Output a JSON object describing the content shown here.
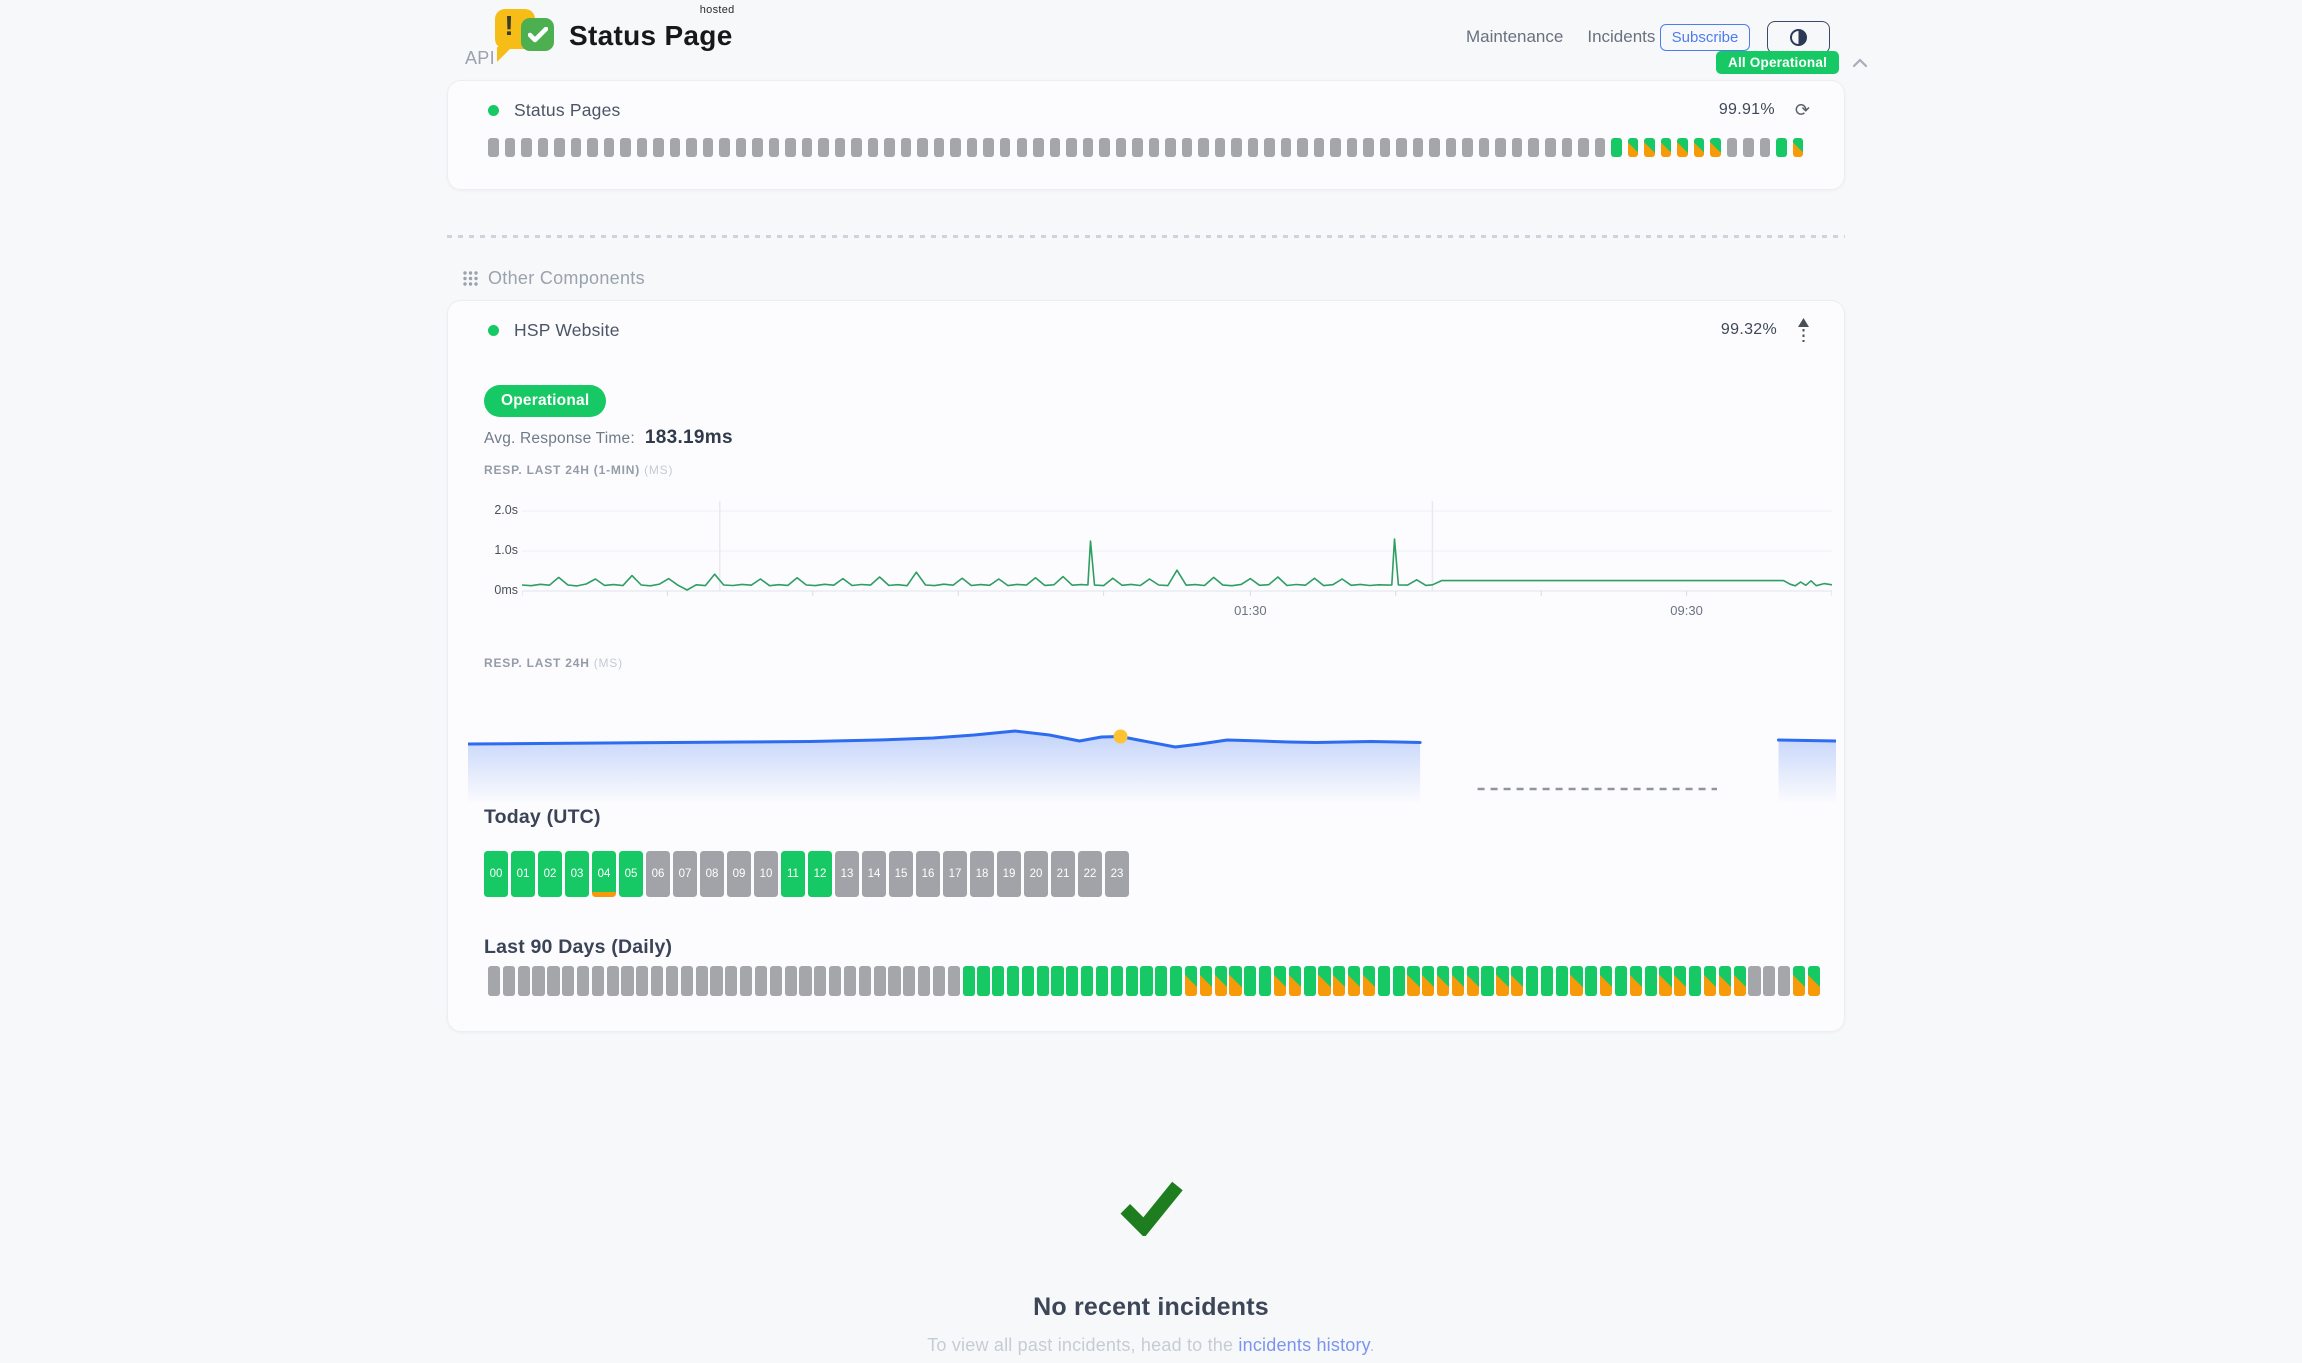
{
  "header": {
    "brand": {
      "name": "Status Page",
      "superscript": "hosted",
      "alert_glyph": "!"
    },
    "nav": [
      {
        "label": "Maintenance"
      },
      {
        "label": "Incidents"
      }
    ],
    "subscribe_label": "Subscribe",
    "status_badge": "All Operational"
  },
  "sections": {
    "api": {
      "title": "API",
      "component": {
        "name": "Status Pages",
        "uptime_pct": "99.91%",
        "bars": [
          "n",
          "n",
          "n",
          "n",
          "n",
          "n",
          "n",
          "n",
          "n",
          "n",
          "n",
          "n",
          "n",
          "n",
          "n",
          "n",
          "n",
          "n",
          "n",
          "n",
          "n",
          "n",
          "n",
          "n",
          "n",
          "n",
          "n",
          "n",
          "n",
          "n",
          "n",
          "n",
          "n",
          "n",
          "n",
          "n",
          "n",
          "n",
          "n",
          "n",
          "n",
          "n",
          "n",
          "n",
          "n",
          "n",
          "n",
          "n",
          "n",
          "n",
          "n",
          "n",
          "n",
          "n",
          "n",
          "n",
          "n",
          "n",
          "n",
          "n",
          "n",
          "n",
          "n",
          "n",
          "n",
          "n",
          "n",
          "n",
          "u",
          "d",
          "d",
          "d",
          "d",
          "d",
          "d",
          "n",
          "n",
          "n",
          "u",
          "d"
        ]
      }
    },
    "other": {
      "title": "Other Components",
      "component": {
        "name": "HSP Website",
        "uptime_pct": "99.32%",
        "status": "Operational",
        "avg_response_label": "Avg. Response Time:",
        "avg_response_value": "183.19ms",
        "today_title": "Today (UTC)",
        "today_hours": [
          {
            "label": "00",
            "status": "u"
          },
          {
            "label": "01",
            "status": "u"
          },
          {
            "label": "02",
            "status": "u"
          },
          {
            "label": "03",
            "status": "u"
          },
          {
            "label": "04",
            "status": "um"
          },
          {
            "label": "05",
            "status": "u"
          },
          {
            "label": "06",
            "status": "n"
          },
          {
            "label": "07",
            "status": "n"
          },
          {
            "label": "08",
            "status": "n"
          },
          {
            "label": "09",
            "status": "n"
          },
          {
            "label": "10",
            "status": "n"
          },
          {
            "label": "11",
            "status": "u"
          },
          {
            "label": "12",
            "status": "u"
          },
          {
            "label": "13",
            "status": "n"
          },
          {
            "label": "14",
            "status": "n"
          },
          {
            "label": "15",
            "status": "n"
          },
          {
            "label": "16",
            "status": "n"
          },
          {
            "label": "17",
            "status": "n"
          },
          {
            "label": "18",
            "status": "n"
          },
          {
            "label": "19",
            "status": "n"
          },
          {
            "label": "20",
            "status": "n"
          },
          {
            "label": "21",
            "status": "n"
          },
          {
            "label": "22",
            "status": "n"
          },
          {
            "label": "23",
            "status": "n"
          }
        ],
        "last90_title": "Last 90 Days (Daily)",
        "last90_bars": [
          "n",
          "n",
          "n",
          "n",
          "n",
          "n",
          "n",
          "n",
          "n",
          "n",
          "n",
          "n",
          "n",
          "n",
          "n",
          "n",
          "n",
          "n",
          "n",
          "n",
          "n",
          "n",
          "n",
          "n",
          "n",
          "n",
          "n",
          "n",
          "n",
          "n",
          "n",
          "n",
          "u",
          "u",
          "u",
          "u",
          "u",
          "u",
          "u",
          "u",
          "u",
          "u",
          "u",
          "u",
          "u",
          "u",
          "u",
          "d",
          "d",
          "d",
          "d",
          "u",
          "u",
          "d",
          "d",
          "u",
          "d",
          "d",
          "d",
          "d",
          "u",
          "u",
          "d",
          "d",
          "d",
          "d",
          "d",
          "u",
          "d",
          "d",
          "u",
          "u",
          "u",
          "d",
          "u",
          "d",
          "u",
          "d",
          "u",
          "d",
          "d",
          "u",
          "d",
          "d",
          "d",
          "n",
          "n",
          "n",
          "d",
          "d"
        ]
      }
    }
  },
  "chart_data": [
    {
      "type": "line",
      "label": "RESP. LAST 24H (1-MIN)",
      "unit": "(MS)",
      "line_color": "#2e9e62",
      "ylim_ms": [
        0,
        2250
      ],
      "grid": true,
      "y_ticks": [
        {
          "label": "2.0s",
          "ms": 2000
        },
        {
          "label": "1.0s",
          "ms": 1000
        },
        {
          "label": "0ms",
          "ms": 0
        }
      ],
      "x_labels": [
        {
          "label": "01:30",
          "pct": 55.6
        },
        {
          "label": "09:30",
          "pct": 88.9
        }
      ],
      "x_ticks_pct": [
        0,
        11.1,
        22.2,
        33.3,
        44.4,
        55.6,
        66.7,
        77.8,
        88.9,
        100
      ],
      "boundary_lines_pct": [
        15.1,
        69.5
      ],
      "points_pct_ms": [
        [
          0,
          150
        ],
        [
          0.7,
          132
        ],
        [
          1.4,
          168
        ],
        [
          2.1,
          145
        ],
        [
          2.8,
          340
        ],
        [
          3.5,
          150
        ],
        [
          4.2,
          128
        ],
        [
          4.9,
          175
        ],
        [
          5.6,
          300
        ],
        [
          6.3,
          140
        ],
        [
          7,
          160
        ],
        [
          7.7,
          135
        ],
        [
          8.4,
          385
        ],
        [
          9.1,
          150
        ],
        [
          9.8,
          130
        ],
        [
          10.5,
          172
        ],
        [
          11.2,
          310
        ],
        [
          11.9,
          145
        ],
        [
          12.6,
          25
        ],
        [
          13.3,
          155
        ],
        [
          14,
          135
        ],
        [
          14.7,
          420
        ],
        [
          15.4,
          150
        ],
        [
          16.1,
          138
        ],
        [
          16.8,
          165
        ],
        [
          17.5,
          145
        ],
        [
          18.2,
          300
        ],
        [
          18.9,
          132
        ],
        [
          19.6,
          158
        ],
        [
          20.3,
          140
        ],
        [
          21,
          330
        ],
        [
          21.7,
          150
        ],
        [
          22.4,
          135
        ],
        [
          23.1,
          168
        ],
        [
          23.8,
          145
        ],
        [
          24.5,
          310
        ],
        [
          25.2,
          138
        ],
        [
          25.9,
          162
        ],
        [
          26.6,
          148
        ],
        [
          27.3,
          350
        ],
        [
          28,
          140
        ],
        [
          28.7,
          158
        ],
        [
          29.4,
          132
        ],
        [
          30.1,
          470
        ],
        [
          30.8,
          150
        ],
        [
          31.5,
          135
        ],
        [
          32.2,
          170
        ],
        [
          32.9,
          145
        ],
        [
          33.6,
          320
        ],
        [
          34.3,
          138
        ],
        [
          35,
          160
        ],
        [
          35.7,
          142
        ],
        [
          36.4,
          300
        ],
        [
          37.1,
          135
        ],
        [
          37.8,
          165
        ],
        [
          38.5,
          148
        ],
        [
          39.2,
          330
        ],
        [
          39.9,
          140
        ],
        [
          40.6,
          155
        ],
        [
          41.3,
          360
        ],
        [
          42,
          145
        ],
        [
          42.7,
          160
        ],
        [
          43.2,
          150
        ],
        [
          43.4,
          1250
        ],
        [
          43.7,
          148
        ],
        [
          44.4,
          135
        ],
        [
          45.1,
          320
        ],
        [
          45.8,
          142
        ],
        [
          46.5,
          165
        ],
        [
          47.2,
          138
        ],
        [
          47.9,
          300
        ],
        [
          48.6,
          150
        ],
        [
          49.3,
          135
        ],
        [
          50,
          520
        ],
        [
          50.7,
          145
        ],
        [
          51.4,
          160
        ],
        [
          52.1,
          138
        ],
        [
          52.8,
          340
        ],
        [
          53.5,
          148
        ],
        [
          54.2,
          132
        ],
        [
          54.9,
          165
        ],
        [
          55.6,
          310
        ],
        [
          56.3,
          142
        ],
        [
          57,
          158
        ],
        [
          57.7,
          350
        ],
        [
          58.4,
          138
        ],
        [
          59.1,
          162
        ],
        [
          59.8,
          145
        ],
        [
          60.5,
          320
        ],
        [
          61.2,
          135
        ],
        [
          61.9,
          158
        ],
        [
          62.6,
          300
        ],
        [
          63.3,
          142
        ],
        [
          64,
          165
        ],
        [
          64.7,
          138
        ],
        [
          65.4,
          155
        ],
        [
          66.1,
          148
        ],
        [
          66.4,
          150
        ],
        [
          66.6,
          1300
        ],
        [
          66.9,
          152
        ],
        [
          67.6,
          148
        ],
        [
          68.3,
          280
        ],
        [
          69,
          140
        ],
        [
          69.5,
          155
        ],
        [
          70.2,
          260
        ],
        [
          96.3,
          260
        ],
        [
          96.8,
          170
        ],
        [
          97.2,
          130
        ],
        [
          97.6,
          225
        ],
        [
          98,
          142
        ],
        [
          98.4,
          255
        ],
        [
          98.8,
          132
        ],
        [
          99.4,
          185
        ],
        [
          100,
          155
        ]
      ]
    },
    {
      "type": "area",
      "label": "RESP. LAST 24H",
      "unit": "(MS)",
      "line_color": "#2d6bf0",
      "fill_color": "#3b72f0",
      "marker": {
        "pct": 47.7,
        "v": 68.5,
        "color": "#ffc233"
      },
      "points_pct_v": [
        [
          0,
          61
        ],
        [
          5,
          61.5
        ],
        [
          10,
          62
        ],
        [
          15,
          62.5
        ],
        [
          20,
          63
        ],
        [
          25,
          63.5
        ],
        [
          30,
          65
        ],
        [
          34,
          67
        ],
        [
          37,
          70
        ],
        [
          40,
          74
        ],
        [
          42.5,
          70
        ],
        [
          44.7,
          64
        ],
        [
          46.3,
          68
        ],
        [
          47.7,
          68.5
        ],
        [
          49,
          65
        ],
        [
          51.7,
          58
        ],
        [
          53.5,
          61
        ],
        [
          55.5,
          65
        ],
        [
          58,
          64
        ],
        [
          60,
          63
        ],
        [
          62,
          62.5
        ],
        [
          64,
          63
        ],
        [
          66,
          63.5
        ],
        [
          68,
          63
        ],
        [
          69.6,
          62.5
        ]
      ],
      "no_data_dash": {
        "from_pct": 73.8,
        "to_pct": 91.3,
        "v": 16
      },
      "right_segment_pct_v": [
        [
          95.8,
          65
        ],
        [
          100,
          64
        ]
      ]
    }
  ],
  "incidents": {
    "title": "No recent incidents",
    "subtitle_prefix": "To view all past incidents, head to the ",
    "link_text": "incidents history",
    "subtitle_suffix": "."
  },
  "colors": {
    "operational_green": "#17c964",
    "degraded_orange": "#f79a09",
    "nodata_gray": "#a5a6aa",
    "brand_yellow": "#f6bd16",
    "logo_green": "#4caf50",
    "check_green": "#1e7d1e",
    "accent_blue": "#4e7cf0",
    "chart_line_green": "#2e9e62",
    "chart_line_blue": "#2d6bf0",
    "link_blue": "#7b95ee",
    "page_bg": "#f7f8fa"
  }
}
